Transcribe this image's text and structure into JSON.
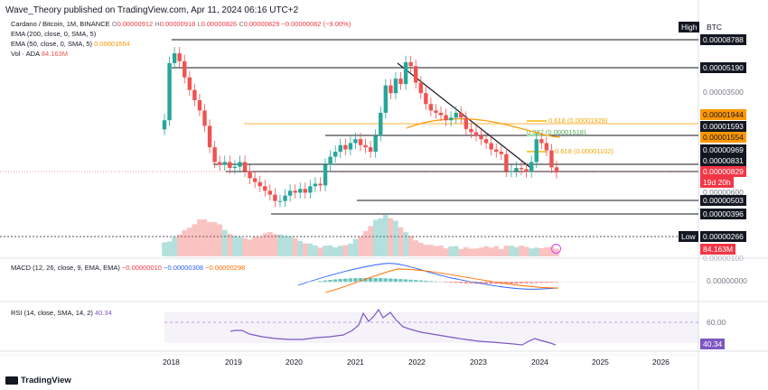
{
  "header": {
    "publisher": "Wave_Theory published on TradingView.com, Apr 11, 2024 06:16 UTC+2"
  },
  "symbol": {
    "title": "Cardano / Bitcoin, 1M, BINANCE",
    "ohlc": {
      "o_label": "O",
      "o": "0.00000912",
      "h_label": "H",
      "h": "0.00000918",
      "l_label": "L",
      "l": "0.00000826",
      "c_label": "C",
      "c": "0.00000829",
      "change": "−0.00000082 (−9.00%)"
    }
  },
  "indicators": {
    "ema200": "EMA (200, close, 0, SMA, 5)",
    "ema50_label": "EMA (50, close, 0, SMA, 5)",
    "ema50_value": "0.00001554",
    "vol_label": "Vol · ADA",
    "vol_value": "84.163M",
    "macd_label": "MACD (12, 26, close, 9, EMA, EMA)",
    "macd_v1": "−0.00000010",
    "macd_v2": "−0.00000308",
    "macd_v3": "−0.00000298",
    "rsi_label": "RSI (14, close, SMA, 14, 2)",
    "rsi_value": "40.34"
  },
  "price_axis": {
    "high_label": "High",
    "currency": "BTC",
    "low_label": "Low",
    "levels": [
      "0.00008788",
      "0.00005190",
      "0.00003500",
      "0.00001944",
      "0.00001593",
      "0.00001554",
      "0.00000969",
      "0.00000831",
      "0.00000829",
      "0.00000600",
      "0.00000503",
      "0.00000396",
      "0.00000266"
    ],
    "countdown": "19d 20h",
    "vol_tag": "84.163M",
    "partial": "0.00000100"
  },
  "fib": {
    "f618_top": "0.618 (0.00001929)",
    "f382": "0.382 (0.00001518)",
    "f618_low": "0.618 (0.00001102)"
  },
  "macd_axis": {
    "zero": "0.00000000"
  },
  "rsi_axis": {
    "level": "60.00",
    "value": "40.34"
  },
  "time_axis": [
    "2018",
    "2019",
    "2020",
    "2021",
    "2022",
    "2023",
    "2024",
    "2025",
    "2026"
  ],
  "footer": {
    "brand": "TradingView"
  },
  "colors": {
    "up": "#26a69a",
    "down": "#ef5350",
    "ema50": "#ff9800",
    "rsi": "#7e57c2",
    "macd": "#2962ff"
  },
  "chart_data": {
    "type": "candlestick",
    "timeframe": "1M",
    "candles_close_approx": [
      2.1e-05,
      5.8e-05,
      6.9e-05,
      6e-05,
      4.5e-05,
      3.6e-05,
      3e-05,
      2.5e-05,
      1.9e-05,
      1.3e-05,
      1e-05,
      9.5e-06,
      1e-05,
      9e-06,
      9.2e-06,
      1e-05,
      8.5e-06,
      7.5e-06,
      7e-06,
      6.5e-06,
      6e-06,
      5.6e-06,
      5e-06,
      5e-06,
      5.5e-06,
      6e-06,
      5.8e-06,
      6.2e-06,
      5.8e-06,
      6.5e-06,
      6.8e-06,
      6.6e-06,
      9.5e-06,
      1.1e-05,
      1.2e-05,
      1.35e-05,
      1.25e-05,
      1.4e-05,
      1.5e-05,
      1.35e-05,
      1.3e-05,
      1.2e-05,
      1.6e-05,
      2.4e-05,
      3.9e-05,
      3.4e-05,
      4.4e-05,
      4e-05,
      5.9e-05,
      5.5e-05,
      4.1e-05,
      3.4e-05,
      2.8e-05,
      2.5e-05,
      2.4e-05,
      2.3e-05,
      2.1e-05,
      2.2e-05,
      2.4e-05,
      2.2e-05,
      1.8e-05,
      1.7e-05,
      1.6e-05,
      1.5e-05,
      1.4e-05,
      1.25e-05,
      1.2e-05,
      1.15e-05,
      8.5e-06,
      8.5e-06,
      9e-06,
      8.8e-06,
      8.4e-06,
      1e-05,
      1.5e-05,
      1.4e-05,
      1.23e-05,
      9.1e-06,
      8.3e-06
    ],
    "rsi_current": 40.34,
    "rsi_level": 60
  }
}
